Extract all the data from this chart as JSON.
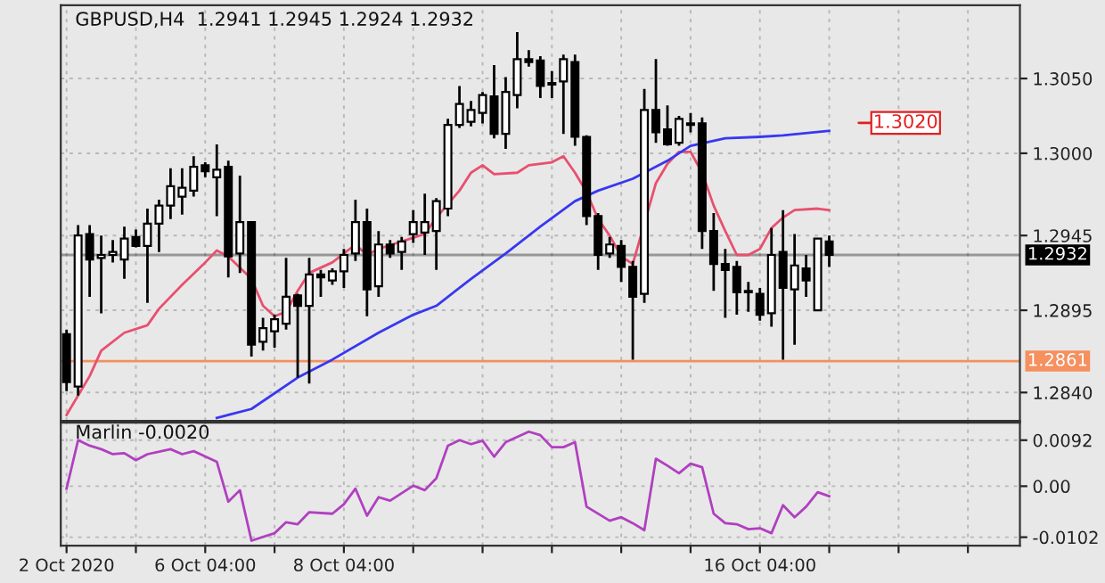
{
  "chart_data": [
    {
      "type": "candlestick",
      "title": "GBPUSD,H4  1.2941 1.2945 1.2924 1.2932",
      "categories": [
        null,
        null,
        null,
        null,
        null,
        null,
        null,
        null,
        null,
        null,
        null,
        null,
        null,
        null,
        null,
        null,
        null,
        null,
        null,
        null,
        null,
        null,
        null,
        null,
        null,
        null,
        null,
        null,
        null,
        null,
        null,
        null,
        null,
        null,
        null,
        null,
        null,
        null,
        null,
        null,
        null,
        null,
        null,
        null,
        null,
        null,
        null,
        null,
        null,
        null,
        null,
        null,
        null,
        null,
        null,
        null,
        null,
        null,
        null,
        null,
        null,
        null,
        null,
        null,
        null,
        null,
        null
      ],
      "ohlc": [
        [
          1.2879,
          1.2882,
          1.2841,
          1.2847
        ],
        [
          1.2844,
          1.2952,
          1.2838,
          1.2945
        ],
        [
          1.2946,
          1.2952,
          1.2904,
          1.2929
        ],
        [
          1.293,
          1.2945,
          1.2893,
          1.2932
        ],
        [
          1.2932,
          1.2942,
          1.2927,
          1.2934
        ],
        [
          1.2929,
          1.2951,
          1.2916,
          1.2943
        ],
        [
          1.2944,
          1.2949,
          1.2937,
          1.2938
        ],
        [
          1.2938,
          1.2963,
          1.29,
          1.2953
        ],
        [
          1.2953,
          1.2969,
          1.2934,
          1.2965
        ],
        [
          1.2965,
          1.299,
          1.2956,
          1.2978
        ],
        [
          1.2971,
          1.299,
          1.2959,
          1.2977
        ],
        [
          1.2975,
          1.2998,
          1.2971,
          1.2991
        ],
        [
          1.2992,
          1.2994,
          1.2984,
          1.2988
        ],
        [
          1.2984,
          1.3006,
          1.2958,
          1.2989
        ],
        [
          1.2991,
          1.2995,
          1.2917,
          1.2931
        ],
        [
          1.2933,
          1.2985,
          1.292,
          1.2954
        ],
        [
          1.2954,
          1.2954,
          1.2864,
          1.2872
        ],
        [
          1.2874,
          1.289,
          1.2868,
          1.2883
        ],
        [
          1.2881,
          1.2892,
          1.287,
          1.2889
        ],
        [
          1.2886,
          1.293,
          1.2882,
          1.2904
        ],
        [
          1.2905,
          1.2906,
          1.285,
          1.2898
        ],
        [
          1.2898,
          1.293,
          1.2846,
          1.2919
        ],
        [
          1.2919,
          1.2922,
          1.2904,
          1.2917
        ],
        [
          1.2915,
          1.2923,
          1.2912,
          1.2921
        ],
        [
          1.2921,
          1.2936,
          1.291,
          1.2932
        ],
        [
          1.2933,
          1.2969,
          1.2928,
          1.2954
        ],
        [
          1.2954,
          1.2963,
          1.2891,
          1.2909
        ],
        [
          1.2911,
          1.2948,
          1.2904,
          1.2939
        ],
        [
          1.2939,
          1.2942,
          1.293,
          1.2933
        ],
        [
          1.2934,
          1.2944,
          1.2922,
          1.2941
        ],
        [
          1.2946,
          1.2962,
          1.294,
          1.2954
        ],
        [
          1.2947,
          1.2973,
          1.2932,
          1.2954
        ],
        [
          1.2948,
          1.297,
          1.2922,
          1.2968
        ],
        [
          1.2963,
          1.3023,
          1.2958,
          1.3019
        ],
        [
          1.3019,
          1.3045,
          1.3017,
          1.3033
        ],
        [
          1.3021,
          1.3035,
          1.3018,
          1.3029
        ],
        [
          1.3027,
          1.3041,
          1.302,
          1.3039
        ],
        [
          1.3038,
          1.3059,
          1.301,
          1.3013
        ],
        [
          1.3013,
          1.3051,
          1.3003,
          1.3041
        ],
        [
          1.3039,
          1.3081,
          1.303,
          1.3063
        ],
        [
          1.3063,
          1.3069,
          1.3058,
          1.3061
        ],
        [
          1.3062,
          1.3065,
          1.3037,
          1.3045
        ],
        [
          1.3047,
          1.3055,
          1.3037,
          1.3046
        ],
        [
          1.3048,
          1.3066,
          1.3013,
          1.3063
        ],
        [
          1.3061,
          1.3066,
          1.3005,
          1.3011
        ],
        [
          1.3011,
          1.3012,
          1.2952,
          1.2958
        ],
        [
          1.2958,
          1.296,
          1.2922,
          1.2932
        ],
        [
          1.2933,
          1.2944,
          1.293,
          1.2939
        ],
        [
          1.2938,
          1.2942,
          1.2914,
          1.2924
        ],
        [
          1.2924,
          1.2928,
          1.2862,
          1.2904
        ],
        [
          1.2906,
          1.3043,
          1.29,
          1.3029
        ],
        [
          1.3029,
          1.3063,
          1.3007,
          1.3014
        ],
        [
          1.3016,
          1.3032,
          1.3005,
          1.3006
        ],
        [
          1.3007,
          1.3025,
          1.3005,
          1.3023
        ],
        [
          1.3019,
          1.3027,
          1.3014,
          1.302
        ],
        [
          1.302,
          1.3024,
          1.2936,
          1.2948
        ],
        [
          1.2948,
          1.296,
          1.2908,
          1.2926
        ],
        [
          1.2926,
          1.2936,
          1.289,
          1.2922
        ],
        [
          1.2924,
          1.2928,
          1.2892,
          1.2907
        ],
        [
          1.2908,
          1.2914,
          1.2894,
          1.2907
        ],
        [
          1.2906,
          1.291,
          1.2888,
          1.2892
        ],
        [
          1.2893,
          1.295,
          1.2884,
          1.2932
        ],
        [
          1.2934,
          1.2962,
          1.2862,
          1.291
        ],
        [
          1.2909,
          1.2946,
          1.2872,
          1.2925
        ],
        [
          1.2923,
          1.2932,
          1.2904,
          1.2915
        ],
        [
          1.2895,
          1.2943,
          1.2895,
          1.2943
        ],
        [
          1.2941,
          1.2945,
          1.2924,
          1.2932
        ]
      ],
      "series": [
        {
          "type": "line",
          "color": "#e8506e",
          "values": [
            1.2825,
            null,
            1.2851,
            1.2868,
            null,
            1.288,
            null,
            1.2885,
            1.2896,
            null,
            1.2912,
            null,
            1.2927,
            1.2935,
            1.2931,
            null,
            1.2916,
            1.2898,
            1.2891,
            1.2894,
            1.2908,
            1.292,
            null,
            1.2927,
            1.2933,
            1.2939,
            1.2932,
            1.2936,
            null,
            1.2941,
            null,
            1.2946,
            1.2957,
            null,
            1.2975,
            1.2987,
            1.2992,
            1.2986,
            null,
            1.2987,
            1.2992,
            null,
            1.2994,
            1.2998,
            1.2987,
            1.2974,
            1.2956,
            1.2945,
            1.2931,
            1.2926,
            null,
            1.298,
            1.2993,
            1.3001,
            1.3001,
            1.2987,
            1.2965,
            1.2948,
            1.2932,
            1.2932,
            1.2936,
            1.295,
            1.2957,
            1.2962,
            null,
            1.2963,
            1.2962
          ]
        },
        {
          "type": "line",
          "color": "#3838f0",
          "values": [
            null,
            null,
            null,
            null,
            null,
            null,
            null,
            null,
            null,
            null,
            null,
            null,
            null,
            1.2823,
            null,
            null,
            1.2829,
            null,
            null,
            null,
            1.285,
            null,
            null,
            1.2862,
            null,
            null,
            null,
            1.288,
            null,
            null,
            1.2892,
            null,
            1.2898,
            null,
            null,
            1.2916,
            null,
            null,
            1.2933,
            null,
            null,
            1.2951,
            null,
            null,
            1.2968,
            null,
            1.2975,
            null,
            null,
            1.2983,
            null,
            null,
            1.2995,
            null,
            1.3005,
            null,
            null,
            1.301,
            null,
            null,
            1.3011,
            null,
            1.3012,
            null,
            null,
            null,
            1.3015
          ]
        }
      ],
      "ylim": [
        1.2821,
        1.3099
      ],
      "yticks": [
        {
          "value": 1.305,
          "label": "1.3050"
        },
        {
          "value": 1.3,
          "label": "1.3000"
        },
        {
          "value": 1.2945,
          "label": "1.2945"
        },
        {
          "value": 1.2895,
          "label": "1.2895"
        },
        {
          "value": 1.284,
          "label": "1.2840"
        }
      ],
      "ref_lines": [
        {
          "axis": "y",
          "value": 1.2861,
          "label": "1.2861",
          "color": "#f5905f"
        },
        {
          "axis": "y",
          "value": 1.2932,
          "label": "1.2932",
          "color": "#000000"
        }
      ],
      "annotations": [
        "1.3020"
      ],
      "grid": true,
      "tick_labels": "y"
    },
    {
      "type": "line",
      "title": "Marlin -0.0020",
      "categories": [
        "2 Oct 2020",
        null,
        null,
        null,
        null,
        null,
        null,
        null,
        null,
        null,
        null,
        null,
        "6 Oct 04:00",
        null,
        null,
        null,
        null,
        null,
        null,
        null,
        null,
        null,
        null,
        null,
        "8 Oct 04:00",
        null,
        null,
        null,
        null,
        null,
        null,
        null,
        null,
        null,
        null,
        null,
        null,
        null,
        null,
        null,
        null,
        null,
        null,
        null,
        null,
        null,
        null,
        null,
        null,
        null,
        null,
        null,
        null,
        null,
        null,
        null,
        null,
        null,
        null,
        null,
        "16 Oct 04:00",
        null,
        null,
        null,
        null,
        null,
        null
      ],
      "series": [
        {
          "color": "#b040c0",
          "values": [
            -0.0005,
            0.0092,
            0.0081,
            0.0074,
            0.0064,
            0.0066,
            0.0052,
            0.0064,
            null,
            0.0074,
            0.0064,
            0.007,
            null,
            0.0049,
            -0.0031,
            -0.0008,
            -0.0109,
            null,
            -0.0094,
            -0.0072,
            -0.0076,
            -0.0052,
            null,
            -0.0055,
            -0.0036,
            -0.0005,
            -0.0059,
            -0.0022,
            -0.0029,
            null,
            0.0001,
            -0.0008,
            0.0016,
            0.0081,
            0.0092,
            0.0084,
            0.0091,
            0.0059,
            0.0088,
            null,
            0.0109,
            0.0102,
            0.0078,
            0.0078,
            0.0088,
            -0.0041,
            null,
            -0.0069,
            -0.0062,
            -0.0074,
            -0.0088,
            0.0055,
            0.0041,
            0.0026,
            0.0045,
            0.0038,
            -0.0055,
            -0.0074,
            -0.0076,
            -0.0086,
            -0.0084,
            -0.0094,
            -0.0038,
            -0.0062,
            -0.0041,
            -0.0012,
            -0.002
          ]
        }
      ],
      "ylim": [
        -0.0119,
        0.0127
      ],
      "yticks": [
        {
          "value": 0.0092,
          "label": "0.0092"
        },
        {
          "value": 0,
          "label": "0.00"
        },
        {
          "value": -0.0102,
          "label": "-0.0102"
        }
      ],
      "grid": true
    }
  ]
}
